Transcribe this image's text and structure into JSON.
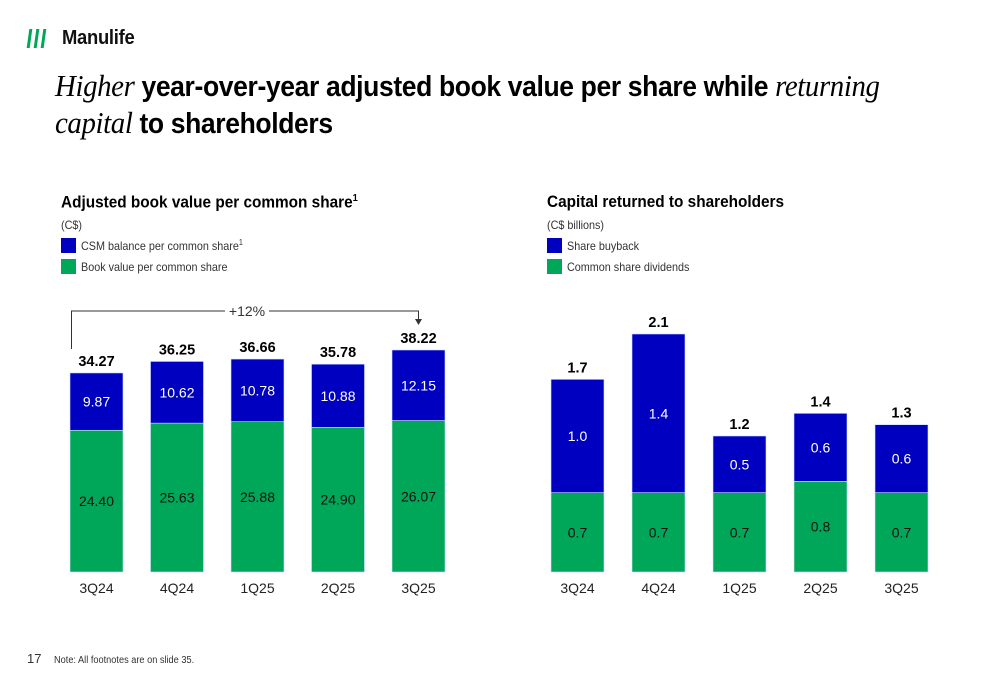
{
  "brand": {
    "name": "Manulife",
    "logo_icon": "manulife-stripes-logo",
    "colors": {
      "green": "#00a758",
      "blue": "#0000c1",
      "text": "#000000"
    }
  },
  "title": {
    "part1_italic": "Higher",
    "part2_bold": " year-over-year adjusted book value per share while ",
    "part3_italic": "returning capital",
    "part4_bold": " to shareholders"
  },
  "footer": {
    "page_number": "17",
    "note": "Note: All footnotes are on slide 35."
  },
  "chart_data": [
    {
      "type": "bar",
      "stacked": true,
      "title": "Adjusted book value per common share",
      "title_superscript": "1",
      "unit": "(C$)",
      "categories": [
        "3Q24",
        "4Q24",
        "1Q25",
        "2Q25",
        "3Q25"
      ],
      "series": [
        {
          "name": "Book value per common share",
          "color": "#00a758",
          "values": [
            24.4,
            25.63,
            25.88,
            24.9,
            26.07
          ],
          "labels": [
            "24.40",
            "25.63",
            "25.88",
            "24.90",
            "26.07"
          ]
        },
        {
          "name": "CSM balance per common share",
          "name_superscript": "1",
          "color": "#0000c1",
          "values": [
            9.87,
            10.62,
            10.78,
            10.88,
            12.15
          ],
          "labels": [
            "9.87",
            "10.62",
            "10.78",
            "10.88",
            "12.15"
          ]
        }
      ],
      "totals": [
        34.27,
        36.25,
        36.66,
        35.78,
        38.22
      ],
      "total_labels": [
        "34.27",
        "36.25",
        "36.66",
        "35.78",
        "38.22"
      ],
      "annotation": {
        "text": "+12%",
        "from": "3Q24",
        "to": "3Q25"
      },
      "legend_order": [
        "CSM balance per common share",
        "Book value per common share"
      ],
      "legend": "top-left",
      "ylim": [
        0,
        38.22
      ],
      "grid": false
    },
    {
      "type": "bar",
      "stacked": true,
      "title": "Capital returned to shareholders",
      "unit": "(C$ billions)",
      "categories": [
        "3Q24",
        "4Q24",
        "1Q25",
        "2Q25",
        "3Q25"
      ],
      "series": [
        {
          "name": "Common share dividends",
          "color": "#00a758",
          "values": [
            0.7,
            0.7,
            0.7,
            0.8,
            0.7
          ],
          "labels": [
            "0.7",
            "0.7",
            "0.7",
            "0.8",
            "0.7"
          ]
        },
        {
          "name": "Share buyback",
          "color": "#0000c1",
          "values": [
            1.0,
            1.4,
            0.5,
            0.6,
            0.6
          ],
          "labels": [
            "1.0",
            "1.4",
            "0.5",
            "0.6",
            "0.6"
          ]
        }
      ],
      "totals": [
        1.7,
        2.1,
        1.2,
        1.4,
        1.3
      ],
      "total_labels": [
        "1.7",
        "2.1",
        "1.2",
        "1.4",
        "1.3"
      ],
      "legend_order": [
        "Share buyback",
        "Common share dividends"
      ],
      "legend": "top-left",
      "ylim": [
        0,
        2.1
      ],
      "grid": false
    }
  ]
}
